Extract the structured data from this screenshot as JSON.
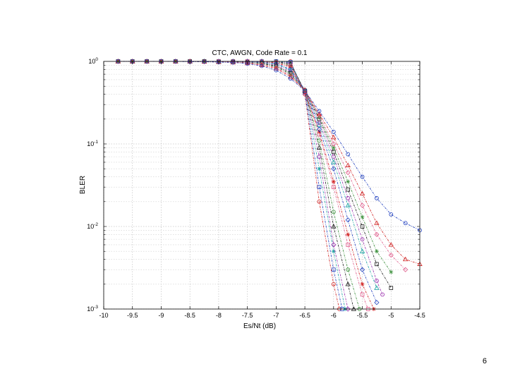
{
  "slide": {
    "page_number": "6"
  },
  "chart_data": {
    "type": "line",
    "title": "CTC, AWGN, Code Rate = 0.1",
    "xlabel": "Es/Nt (dB)",
    "ylabel": "BLER",
    "xlim": [
      -10,
      -4.5
    ],
    "ylim": [
      0.001,
      1
    ],
    "yscale": "log",
    "grid": true,
    "x_ticks": [
      "-10",
      "-9.5",
      "-9",
      "-8.5",
      "-8",
      "-7.5",
      "-7",
      "-6.5",
      "-6",
      "-5.5",
      "-5",
      "-4.5"
    ],
    "y_ticks": [
      {
        "value": 1,
        "base": "10",
        "exp": "0"
      },
      {
        "value": 0.1,
        "base": "10",
        "exp": "-1"
      },
      {
        "value": 0.01,
        "base": "10",
        "exp": "-2"
      },
      {
        "value": 0.001,
        "base": "10",
        "exp": "-3"
      }
    ],
    "colors": [
      "#d02020",
      "#1f3fbf",
      "#18a0a0",
      "#9b2fae",
      "#1c1c1c",
      "#3a8f3a",
      "#e05a8a"
    ],
    "markers": [
      "circle",
      "square",
      "star",
      "diamond",
      "triangle"
    ],
    "series": [
      {
        "x": [
          -9.75,
          -9.5,
          -9.25,
          -9,
          -8.75,
          -8.5,
          -8.25,
          -8,
          -7.75,
          -7.5,
          -7.25,
          -7,
          -6.75,
          -6.5,
          -6.25,
          -6,
          -5.9
        ],
        "y": [
          1,
          1,
          1,
          1,
          1,
          1,
          1,
          1,
          1,
          1,
          1,
          1,
          1,
          0.4,
          0.02,
          0.002,
          0.001
        ]
      },
      {
        "x": [
          -9.75,
          -9.5,
          -9.25,
          -9,
          -8.75,
          -8.5,
          -8.25,
          -8,
          -7.75,
          -7.5,
          -7.25,
          -7,
          -6.75,
          -6.5,
          -6.25,
          -6,
          -5.85
        ],
        "y": [
          1,
          1,
          1,
          1,
          1,
          1,
          1,
          1,
          1,
          1,
          1,
          1,
          0.98,
          0.42,
          0.03,
          0.003,
          0.001
        ]
      },
      {
        "x": [
          -9.75,
          -9.5,
          -9.25,
          -9,
          -8.75,
          -8.5,
          -8.25,
          -8,
          -7.75,
          -7.5,
          -7.25,
          -7,
          -6.75,
          -6.5,
          -6.25,
          -6,
          -5.8
        ],
        "y": [
          1,
          1,
          1,
          1,
          1,
          1,
          1,
          1,
          1,
          1,
          1,
          1,
          0.97,
          0.43,
          0.05,
          0.005,
          0.001
        ]
      },
      {
        "x": [
          -9.75,
          -9.5,
          -9.25,
          -9,
          -8.75,
          -8.5,
          -8.25,
          -8,
          -7.75,
          -7.5,
          -7.25,
          -7,
          -6.75,
          -6.5,
          -6.25,
          -6,
          -5.75
        ],
        "y": [
          1,
          1,
          1,
          1,
          1,
          1,
          1,
          1,
          1,
          1,
          1,
          0.99,
          0.95,
          0.42,
          0.07,
          0.006,
          0.001
        ]
      },
      {
        "x": [
          -9.75,
          -9.5,
          -9.25,
          -9,
          -8.75,
          -8.5,
          -8.25,
          -8,
          -7.75,
          -7.5,
          -7.25,
          -7,
          -6.75,
          -6.5,
          -6.25,
          -6,
          -5.75,
          -5.65
        ],
        "y": [
          1,
          1,
          1,
          1,
          1,
          1,
          1,
          1,
          1,
          1,
          1,
          0.99,
          0.93,
          0.44,
          0.09,
          0.01,
          0.002,
          0.001
        ]
      },
      {
        "x": [
          -9.75,
          -9.5,
          -9.25,
          -9,
          -8.75,
          -8.5,
          -8.25,
          -8,
          -7.75,
          -7.5,
          -7.25,
          -7,
          -6.75,
          -6.5,
          -6.25,
          -6,
          -5.75,
          -5.55
        ],
        "y": [
          1,
          1,
          1,
          1,
          1,
          1,
          1,
          1,
          1,
          1,
          0.99,
          0.98,
          0.9,
          0.43,
          0.11,
          0.015,
          0.003,
          0.001
        ]
      },
      {
        "x": [
          -9.75,
          -9.5,
          -9.25,
          -9,
          -8.75,
          -8.5,
          -8.25,
          -8,
          -7.75,
          -7.5,
          -7.25,
          -7,
          -6.75,
          -6.5,
          -6.25,
          -6,
          -5.75,
          -5.5,
          -5.4
        ],
        "y": [
          1,
          1,
          1,
          1,
          1,
          1,
          1,
          1,
          1,
          1,
          0.99,
          0.97,
          0.88,
          0.44,
          0.13,
          0.03,
          0.006,
          0.0015,
          0.001
        ]
      },
      {
        "x": [
          -9.75,
          -9.5,
          -9.25,
          -9,
          -8.75,
          -8.5,
          -8.25,
          -8,
          -7.75,
          -7.5,
          -7.25,
          -7,
          -6.75,
          -6.5,
          -6.25,
          -6,
          -5.75,
          -5.5,
          -5.3
        ],
        "y": [
          1,
          1,
          1,
          1,
          1,
          1,
          1,
          1,
          1,
          0.99,
          0.98,
          0.96,
          0.85,
          0.42,
          0.14,
          0.035,
          0.008,
          0.002,
          0.001
        ]
      },
      {
        "x": [
          -9.75,
          -9.5,
          -9.25,
          -9,
          -8.75,
          -8.5,
          -8.25,
          -8,
          -7.75,
          -7.5,
          -7.25,
          -7,
          -6.75,
          -6.5,
          -6.25,
          -6,
          -5.75,
          -5.5,
          -5.25
        ],
        "y": [
          1,
          1,
          1,
          1,
          1,
          1,
          1,
          1,
          1,
          0.99,
          0.98,
          0.94,
          0.8,
          0.45,
          0.15,
          0.05,
          0.012,
          0.003,
          0.0012
        ]
      },
      {
        "x": [
          -9.75,
          -9.5,
          -9.25,
          -9,
          -8.75,
          -8.5,
          -8.25,
          -8,
          -7.75,
          -7.5,
          -7.25,
          -7,
          -6.75,
          -6.5,
          -6.25,
          -6,
          -5.75,
          -5.5,
          -5.25
        ],
        "y": [
          1,
          1,
          1,
          1,
          1,
          1,
          1,
          1,
          0.99,
          0.98,
          0.97,
          0.93,
          0.78,
          0.44,
          0.17,
          0.06,
          0.018,
          0.005,
          0.0018
        ]
      },
      {
        "x": [
          -9.75,
          -9.5,
          -9.25,
          -9,
          -8.75,
          -8.5,
          -8.25,
          -8,
          -7.75,
          -7.5,
          -7.25,
          -7,
          -6.75,
          -6.5,
          -6.25,
          -6,
          -5.75,
          -5.5,
          -5.25,
          -5.15
        ],
        "y": [
          1,
          1,
          1,
          1,
          1,
          1,
          1,
          1,
          0.99,
          0.98,
          0.96,
          0.9,
          0.75,
          0.45,
          0.18,
          0.07,
          0.022,
          0.007,
          0.0022,
          0.0015
        ]
      },
      {
        "x": [
          -9.75,
          -9.5,
          -9.25,
          -9,
          -8.75,
          -8.5,
          -8.25,
          -8,
          -7.75,
          -7.5,
          -7.25,
          -7,
          -6.75,
          -6.5,
          -6.25,
          -6,
          -5.75,
          -5.5,
          -5.25,
          -5.0
        ],
        "y": [
          1,
          1,
          1,
          1,
          1,
          1,
          1,
          0.99,
          0.99,
          0.97,
          0.95,
          0.88,
          0.72,
          0.44,
          0.2,
          0.08,
          0.028,
          0.01,
          0.0035,
          0.0018
        ]
      },
      {
        "x": [
          -9.75,
          -9.5,
          -9.25,
          -9,
          -8.75,
          -8.5,
          -8.25,
          -8,
          -7.75,
          -7.5,
          -7.25,
          -7,
          -6.75,
          -6.5,
          -6.25,
          -6,
          -5.75,
          -5.5,
          -5.25,
          -5.0
        ],
        "y": [
          1,
          1,
          1,
          1,
          1,
          1,
          1,
          0.99,
          0.98,
          0.97,
          0.94,
          0.86,
          0.7,
          0.45,
          0.21,
          0.09,
          0.035,
          0.013,
          0.005,
          0.0028
        ]
      },
      {
        "x": [
          -9.75,
          -9.5,
          -9.25,
          -9,
          -8.75,
          -8.5,
          -8.25,
          -8,
          -7.75,
          -7.5,
          -7.25,
          -7,
          -6.75,
          -6.5,
          -6.25,
          -6,
          -5.75,
          -5.5,
          -5.25,
          -5.0,
          -4.75
        ],
        "y": [
          1,
          1,
          1,
          1,
          1,
          1,
          0.99,
          0.99,
          0.98,
          0.96,
          0.92,
          0.84,
          0.68,
          0.44,
          0.22,
          0.1,
          0.045,
          0.018,
          0.008,
          0.0045,
          0.003
        ]
      },
      {
        "x": [
          -9.75,
          -9.5,
          -9.25,
          -9,
          -8.75,
          -8.5,
          -8.25,
          -8,
          -7.75,
          -7.5,
          -7.25,
          -7,
          -6.75,
          -6.5,
          -6.25,
          -6,
          -5.75,
          -5.5,
          -5.25,
          -5.0,
          -4.75,
          -4.5
        ],
        "y": [
          1,
          1,
          1,
          1,
          1,
          1,
          0.99,
          0.98,
          0.97,
          0.95,
          0.9,
          0.82,
          0.65,
          0.45,
          0.23,
          0.12,
          0.055,
          0.025,
          0.011,
          0.006,
          0.004,
          0.0035
        ]
      },
      {
        "x": [
          -9.75,
          -9.5,
          -9.25,
          -9,
          -8.75,
          -8.5,
          -8.25,
          -8,
          -7.75,
          -7.5,
          -7.25,
          -7,
          -6.75,
          -6.5,
          -6.25,
          -6,
          -5.75,
          -5.5,
          -5.25,
          -5.0,
          -4.75,
          -4.5
        ],
        "y": [
          1,
          1,
          1,
          1,
          1,
          0.99,
          0.99,
          0.98,
          0.97,
          0.94,
          0.88,
          0.78,
          0.62,
          0.44,
          0.25,
          0.14,
          0.075,
          0.04,
          0.022,
          0.014,
          0.011,
          0.009
        ]
      }
    ]
  }
}
